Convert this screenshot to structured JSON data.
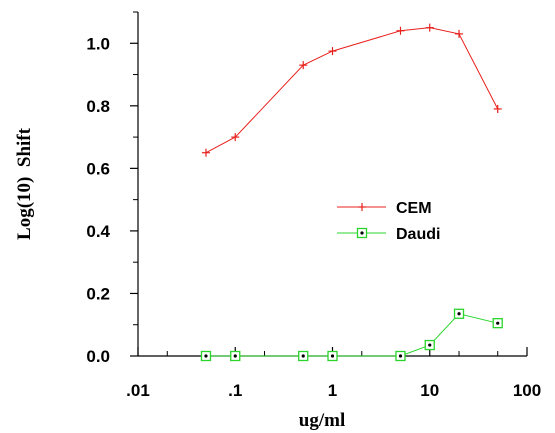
{
  "chart_data": {
    "type": "line",
    "xlabel": "ug/ml",
    "ylabel": "Log(10)  Shift",
    "xscale": "log",
    "xlim": [
      0.01,
      100
    ],
    "ylim": [
      0,
      1.1
    ],
    "x_ticks": [
      {
        "value": 0.01,
        "label": ".01"
      },
      {
        "value": 0.1,
        "label": ".1"
      },
      {
        "value": 1,
        "label": "1"
      },
      {
        "value": 10,
        "label": "10"
      },
      {
        "value": 100,
        "label": "100"
      }
    ],
    "y_ticks": [
      {
        "value": 0,
        "label": "0.0"
      },
      {
        "value": 0.2,
        "label": "0.2"
      },
      {
        "value": 0.4,
        "label": "0.4"
      },
      {
        "value": 0.6,
        "label": "0.6"
      },
      {
        "value": 0.8,
        "label": "0.8"
      },
      {
        "value": 1.0,
        "label": "1.0"
      }
    ],
    "legend_position": "center-right",
    "series": [
      {
        "name": "CEM",
        "color": "#e8201c",
        "marker": "plus",
        "x": [
          0.05,
          0.1,
          0.5,
          1,
          5,
          10,
          20,
          50
        ],
        "y": [
          0.65,
          0.7,
          0.93,
          0.975,
          1.04,
          1.05,
          1.03,
          0.79
        ]
      },
      {
        "name": "Daudi",
        "color": "#2bd42b",
        "marker": "square-dot",
        "x": [
          0.05,
          0.1,
          0.5,
          1,
          5,
          10,
          20,
          50
        ],
        "y": [
          0.0,
          0.0,
          0.0,
          0.0,
          0.0,
          0.035,
          0.135,
          0.105
        ]
      }
    ]
  }
}
